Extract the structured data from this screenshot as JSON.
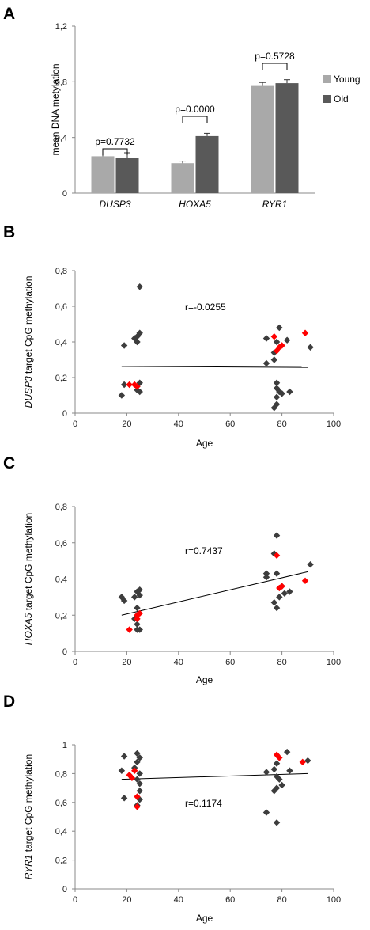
{
  "chart_data": [
    {
      "panel": "A",
      "type": "bar",
      "categories": [
        "DUSP3",
        "HOXA5",
        "RYR1"
      ],
      "ylabel": "mean DNA metylation",
      "ylim": [
        0,
        1.2
      ],
      "yticks": [
        "0",
        "0,4",
        "0,8",
        "1,2"
      ],
      "series": [
        {
          "name": "Young",
          "color": "#a9a9a9",
          "values": [
            0.265,
            0.215,
            0.77
          ],
          "errors": [
            0.045,
            0.015,
            0.025
          ]
        },
        {
          "name": "Old",
          "color": "#595959",
          "values": [
            0.255,
            0.41,
            0.79
          ],
          "errors": [
            0.035,
            0.02,
            0.025
          ]
        }
      ],
      "annotations": [
        "p=0.7732",
        "p=0.0000",
        "p=0.5728"
      ],
      "legend": "right"
    },
    {
      "panel": "B",
      "type": "scatter",
      "gene": "DUSP3",
      "ylabel_suffix": " target CpG methylation",
      "xlabel": "Age",
      "xlim": [
        0,
        100
      ],
      "ylim": [
        0,
        0.8
      ],
      "xticks": [
        "0",
        "20",
        "40",
        "60",
        "80",
        "100"
      ],
      "yticks": [
        "0",
        "0,2",
        "0,4",
        "0,6",
        "0,8"
      ],
      "annotation": "r=-0.0255",
      "trend": [
        [
          18,
          0.263
        ],
        [
          90,
          0.257
        ]
      ],
      "points_dark": [
        [
          18,
          0.1
        ],
        [
          19,
          0.16
        ],
        [
          19,
          0.38
        ],
        [
          23,
          0.42
        ],
        [
          24,
          0.43
        ],
        [
          24,
          0.4
        ],
        [
          25,
          0.45
        ],
        [
          25,
          0.71
        ],
        [
          24,
          0.13
        ],
        [
          25,
          0.12
        ],
        [
          24,
          0.15
        ],
        [
          25,
          0.17
        ],
        [
          74,
          0.28
        ],
        [
          74,
          0.42
        ],
        [
          77,
          0.3
        ],
        [
          77,
          0.34
        ],
        [
          78,
          0.4
        ],
        [
          78,
          0.17
        ],
        [
          78,
          0.14
        ],
        [
          78,
          0.09
        ],
        [
          78,
          0.05
        ],
        [
          77,
          0.03
        ],
        [
          79,
          0.12
        ],
        [
          80,
          0.11
        ],
        [
          79,
          0.48
        ],
        [
          82,
          0.41
        ],
        [
          83,
          0.12
        ],
        [
          91,
          0.37
        ]
      ],
      "points_red": [
        [
          21,
          0.16
        ],
        [
          23,
          0.16
        ],
        [
          24,
          0.15
        ],
        [
          77,
          0.43
        ],
        [
          78,
          0.35
        ],
        [
          79,
          0.37
        ],
        [
          80,
          0.38
        ],
        [
          89,
          0.45
        ]
      ]
    },
    {
      "panel": "C",
      "type": "scatter",
      "gene": "HOXA5",
      "ylabel_suffix": " target CpG methylation",
      "xlabel": "Age",
      "xlim": [
        0,
        100
      ],
      "ylim": [
        0,
        0.8
      ],
      "xticks": [
        "0",
        "20",
        "40",
        "60",
        "80",
        "100"
      ],
      "yticks": [
        "0",
        "0,2",
        "0,4",
        "0,6",
        "0,8"
      ],
      "annotation": "r=0.7437",
      "trend": [
        [
          18,
          0.2
        ],
        [
          90,
          0.44
        ]
      ],
      "points_dark": [
        [
          18,
          0.3
        ],
        [
          19,
          0.28
        ],
        [
          23,
          0.3
        ],
        [
          23,
          0.18
        ],
        [
          24,
          0.33
        ],
        [
          24,
          0.24
        ],
        [
          24,
          0.15
        ],
        [
          25,
          0.34
        ],
        [
          25,
          0.31
        ],
        [
          25,
          0.12
        ],
        [
          24,
          0.12
        ],
        [
          74,
          0.43
        ],
        [
          74,
          0.41
        ],
        [
          77,
          0.54
        ],
        [
          78,
          0.64
        ],
        [
          78,
          0.43
        ],
        [
          77,
          0.27
        ],
        [
          78,
          0.24
        ],
        [
          79,
          0.3
        ],
        [
          80,
          0.36
        ],
        [
          81,
          0.32
        ],
        [
          83,
          0.33
        ],
        [
          91,
          0.48
        ]
      ],
      "points_red": [
        [
          21,
          0.12
        ],
        [
          24,
          0.18
        ],
        [
          24,
          0.2
        ],
        [
          25,
          0.21
        ],
        [
          78,
          0.53
        ],
        [
          79,
          0.35
        ],
        [
          80,
          0.36
        ],
        [
          89,
          0.39
        ]
      ]
    },
    {
      "panel": "D",
      "type": "scatter",
      "gene": "RYR1",
      "ylabel_suffix": " target CpG methylation",
      "xlabel": "Age",
      "xlim": [
        0,
        100
      ],
      "ylim": [
        0,
        1
      ],
      "xticks": [
        "0",
        "20",
        "40",
        "60",
        "80",
        "100"
      ],
      "yticks": [
        "0",
        "0,2",
        "0,4",
        "0,6",
        "0,8",
        "1"
      ],
      "annotation": "r=0.1174",
      "trend": [
        [
          18,
          0.76
        ],
        [
          90,
          0.8
        ]
      ],
      "points_dark": [
        [
          18,
          0.82
        ],
        [
          19,
          0.63
        ],
        [
          19,
          0.92
        ],
        [
          23,
          0.84
        ],
        [
          24,
          0.94
        ],
        [
          24,
          0.88
        ],
        [
          25,
          0.91
        ],
        [
          25,
          0.8
        ],
        [
          24,
          0.76
        ],
        [
          25,
          0.73
        ],
        [
          25,
          0.68
        ],
        [
          25,
          0.62
        ],
        [
          24,
          0.58
        ],
        [
          74,
          0.81
        ],
        [
          74,
          0.53
        ],
        [
          77,
          0.83
        ],
        [
          77,
          0.68
        ],
        [
          78,
          0.87
        ],
        [
          78,
          0.78
        ],
        [
          78,
          0.7
        ],
        [
          78,
          0.46
        ],
        [
          79,
          0.76
        ],
        [
          80,
          0.72
        ],
        [
          82,
          0.95
        ],
        [
          83,
          0.82
        ],
        [
          90,
          0.89
        ]
      ],
      "points_red": [
        [
          21,
          0.79
        ],
        [
          22,
          0.77
        ],
        [
          23,
          0.82
        ],
        [
          24,
          0.57
        ],
        [
          24,
          0.64
        ],
        [
          78,
          0.93
        ],
        [
          79,
          0.91
        ],
        [
          88,
          0.88
        ]
      ]
    }
  ]
}
